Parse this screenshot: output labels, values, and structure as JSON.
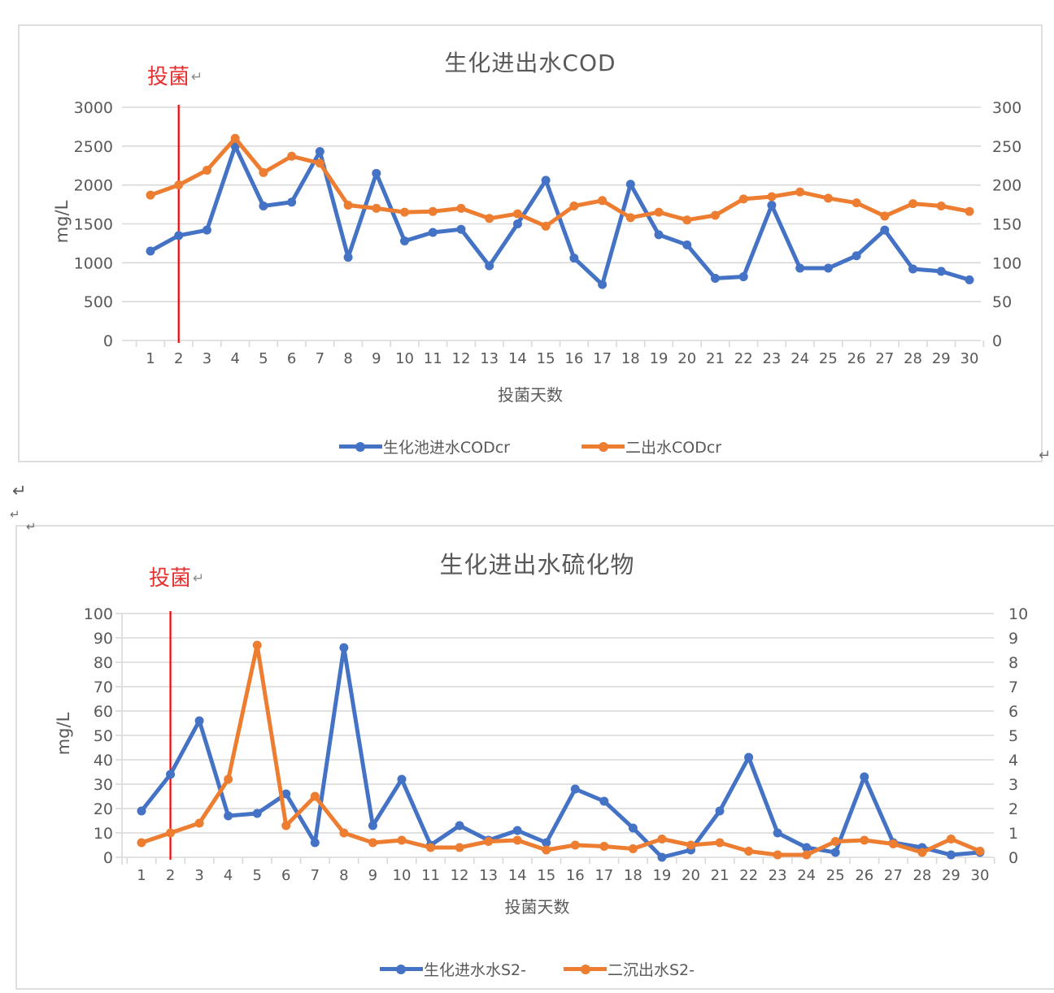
{
  "page": {
    "paragraph_mark": "↵"
  },
  "palette": {
    "series_blue": "#4472c4",
    "series_orange": "#ed7d31",
    "annotation_red": "#e53230",
    "red_line": "#ff0000",
    "axis_text": "#595959",
    "gridline": "#d9d9d9",
    "frame_border": "#dedede"
  },
  "chart_data": [
    {
      "type": "line",
      "title": "生化进出水COD",
      "xlabel": "投菌天数",
      "ylabel": "mg/L",
      "grid": true,
      "legend_position": "bottom",
      "x_ticks": [
        "1",
        "2",
        "3",
        "4",
        "5",
        "6",
        "7",
        "8",
        "9",
        "10",
        "11",
        "12",
        "13",
        "14",
        "15",
        "16",
        "17",
        "18",
        "19",
        "20",
        "21",
        "22",
        "23",
        "24",
        "25",
        "26",
        "27",
        "28",
        "29",
        "30"
      ],
      "y_left": {
        "min": 0,
        "max": 3000,
        "ticks": [
          "3000",
          "2500",
          "2000",
          "1500",
          "1000",
          "500",
          "0"
        ]
      },
      "y_right": {
        "min": 0,
        "max": 300,
        "ticks": [
          "300",
          "250",
          "200",
          "150",
          "100",
          "50",
          "0"
        ]
      },
      "annotation": {
        "text": "投菌",
        "after_mark": "↵",
        "day": 2
      },
      "series": [
        {
          "name": "生化池进水CODcr",
          "color": "#4472c4",
          "axis": "left",
          "values": [
            1150,
            1350,
            1420,
            2500,
            1730,
            1780,
            2430,
            1070,
            2150,
            1280,
            1390,
            1430,
            960,
            1500,
            2060,
            1060,
            720,
            2010,
            1360,
            1230,
            800,
            820,
            1740,
            930,
            930,
            1090,
            1420,
            920,
            890,
            780
          ]
        },
        {
          "name": "二出水CODcr",
          "color": "#ed7d31",
          "axis": "right",
          "values": [
            187,
            200,
            219,
            260,
            216,
            237,
            228,
            174,
            170,
            165,
            166,
            170,
            157,
            163,
            147,
            173,
            180,
            158,
            165,
            155,
            161,
            182,
            185,
            191,
            183,
            177,
            160,
            176,
            173,
            166
          ]
        }
      ]
    },
    {
      "type": "line",
      "title": "生化进出水硫化物",
      "xlabel": "投菌天数",
      "ylabel": "mg/L",
      "grid": true,
      "legend_position": "bottom",
      "x_ticks": [
        "1",
        "2",
        "3",
        "4",
        "5",
        "6",
        "7",
        "8",
        "9",
        "10",
        "11",
        "12",
        "13",
        "14",
        "15",
        "16",
        "17",
        "18",
        "19",
        "20",
        "21",
        "22",
        "23",
        "24",
        "25",
        "26",
        "27",
        "28",
        "29",
        "30"
      ],
      "y_left": {
        "min": 0,
        "max": 100,
        "ticks": [
          "100",
          "90",
          "80",
          "70",
          "60",
          "50",
          "40",
          "30",
          "20",
          "10",
          "0"
        ]
      },
      "y_right": {
        "min": 0,
        "max": 10,
        "ticks": [
          "10",
          "9",
          "8",
          "7",
          "6",
          "5",
          "4",
          "3",
          "2",
          "1",
          "0"
        ]
      },
      "annotation": {
        "text": "投菌",
        "after_mark": "↵",
        "day": 2
      },
      "series": [
        {
          "name": "生化进水水S2-",
          "color": "#4472c4",
          "axis": "left",
          "values": [
            19,
            34,
            56,
            17,
            18,
            26,
            6,
            86,
            13,
            32,
            5,
            13,
            7,
            11,
            6,
            28,
            23,
            12,
            0,
            3,
            19,
            41,
            10,
            4,
            2,
            33,
            6,
            4,
            1,
            2
          ]
        },
        {
          "name": "二沉出水S2-",
          "color": "#ed7d31",
          "axis": "right",
          "values": [
            0.6,
            1.0,
            1.4,
            3.2,
            8.7,
            1.3,
            2.5,
            1.0,
            0.6,
            0.7,
            0.4,
            0.4,
            0.65,
            0.7,
            0.3,
            0.5,
            0.45,
            0.35,
            0.75,
            0.5,
            0.6,
            0.25,
            0.1,
            0.1,
            0.65,
            0.7,
            0.55,
            0.2,
            0.75,
            0.25
          ]
        }
      ]
    }
  ]
}
